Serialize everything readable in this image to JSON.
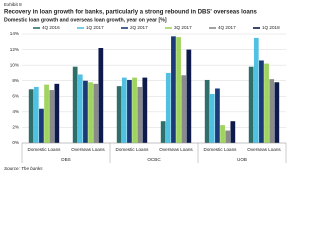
{
  "chart_data": {
    "type": "bar",
    "exhibit": "Exhibit 8",
    "title": "Recovery in loan growth for banks, particularly a strong rebound in DBS' overseas loans",
    "subtitle": "Domestic loan growth and overseas loan growth, year on year [%]",
    "source": "Source: The banks",
    "categories": [
      "Domestic Loans",
      "Overseas Loans",
      "Domestic Loans",
      "Overseas Loans",
      "Domestic Loans",
      "Overseas Loans"
    ],
    "groups": [
      "DBS",
      "OCBC",
      "UOB"
    ],
    "series": [
      {
        "name": "4Q 2016",
        "color": "#2f6f6a",
        "values": [
          6.9,
          9.8,
          7.3,
          2.8,
          8.1,
          9.8
        ]
      },
      {
        "name": "1Q 2017",
        "color": "#52c0e0",
        "values": [
          7.2,
          8.8,
          8.4,
          9.0,
          6.3,
          13.5
        ]
      },
      {
        "name": "2Q 2017",
        "color": "#1d3a78",
        "values": [
          4.4,
          8.0,
          8.1,
          13.7,
          7.0,
          10.6
        ]
      },
      {
        "name": "3Q 2017",
        "color": "#9fd45e",
        "values": [
          7.5,
          7.8,
          8.4,
          13.6,
          2.3,
          10.2
        ]
      },
      {
        "name": "4Q 2017",
        "color": "#8a8a8a",
        "values": [
          6.8,
          7.6,
          7.2,
          8.7,
          1.6,
          8.2
        ]
      },
      {
        "name": "1Q 2018",
        "color": "#0e1a4a",
        "values": [
          7.6,
          12.2,
          8.4,
          12.0,
          2.8,
          7.8
        ]
      }
    ],
    "ylim": [
      0,
      14
    ],
    "yticks": [
      {
        "value": 0,
        "label": "0%"
      },
      {
        "value": 2,
        "label": "2%"
      },
      {
        "value": 4,
        "label": "4%"
      },
      {
        "value": 6,
        "label": "6%"
      },
      {
        "value": 8,
        "label": "8%"
      },
      {
        "value": 10,
        "label": "10%"
      },
      {
        "value": 12,
        "label": "12%"
      },
      {
        "value": 14,
        "label": "14%"
      }
    ],
    "grid": true
  }
}
